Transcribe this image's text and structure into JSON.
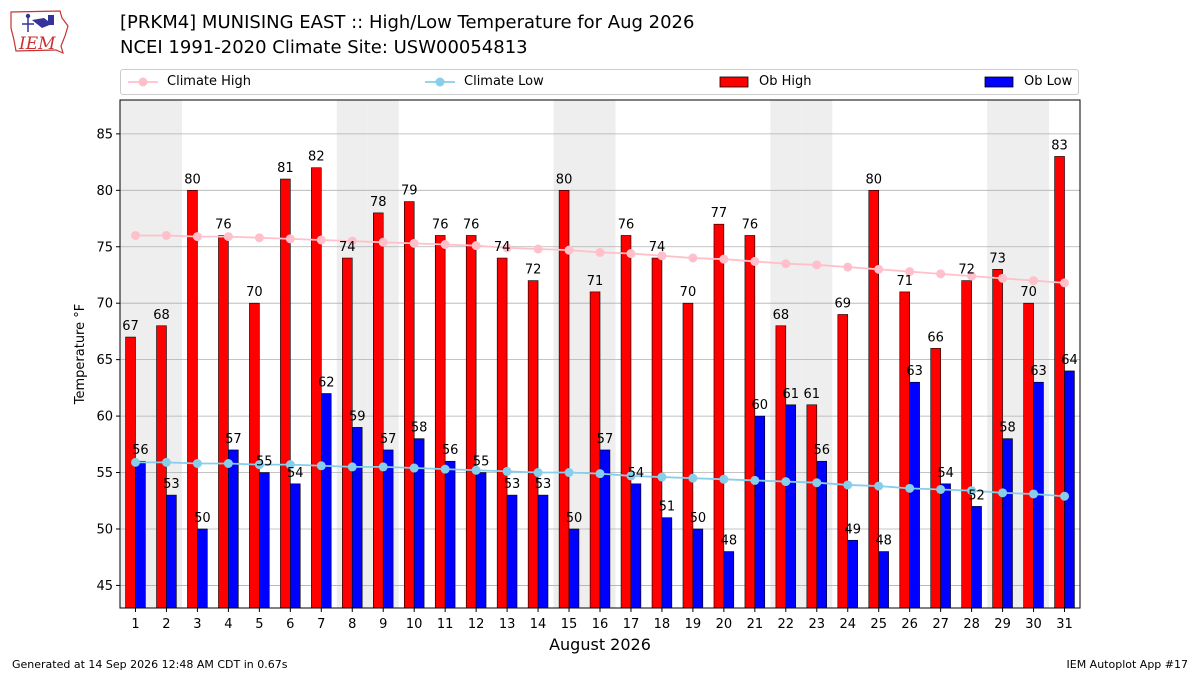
{
  "title": {
    "line1": "[PRKM4] MUNISING EAST :: High/Low Temperature for Aug 2026",
    "line2": "NCEI 1991-2020 Climate Site: USW00054813"
  },
  "logo_text": "IEM",
  "footer": {
    "left": "Generated at 14 Sep 2026 12:48 AM CDT in 0.67s",
    "right": "IEM Autoplot App #17"
  },
  "colors": {
    "ob_high": "#ff0000",
    "ob_low": "#0000ff",
    "climate_high": "#ffc0cb",
    "climate_low": "#87ceeb",
    "weekend_band": "#eeeeee",
    "grid": "#b0b0b0"
  },
  "chart_data": {
    "type": "bar",
    "xlabel": "August 2026",
    "ylabel": "Temperature °F",
    "ylim": [
      43,
      88
    ],
    "yticks": [
      45,
      50,
      55,
      60,
      65,
      70,
      75,
      80,
      85
    ],
    "grid": true,
    "legend_position": "top",
    "categories": [
      "1",
      "2",
      "3",
      "4",
      "5",
      "6",
      "7",
      "8",
      "9",
      "10",
      "11",
      "12",
      "13",
      "14",
      "15",
      "16",
      "17",
      "18",
      "19",
      "20",
      "21",
      "22",
      "23",
      "24",
      "25",
      "26",
      "27",
      "28",
      "29",
      "30",
      "31"
    ],
    "shaded_days": [
      1,
      2,
      8,
      9,
      15,
      16,
      22,
      23,
      29,
      30
    ],
    "series": [
      {
        "name": "Ob High",
        "kind": "bar",
        "values": [
          67,
          68,
          80,
          76,
          70,
          81,
          82,
          74,
          78,
          79,
          76,
          76,
          74,
          72,
          80,
          71,
          76,
          74,
          70,
          77,
          76,
          68,
          61,
          69,
          80,
          71,
          66,
          72,
          73,
          70,
          83
        ]
      },
      {
        "name": "Ob Low",
        "kind": "bar",
        "values": [
          56,
          53,
          50,
          57,
          55,
          54,
          62,
          59,
          57,
          58,
          56,
          55,
          53,
          53,
          50,
          57,
          54,
          51,
          50,
          48,
          60,
          61,
          56,
          49,
          48,
          63,
          54,
          52,
          58,
          63,
          64
        ]
      },
      {
        "name": "Climate High",
        "kind": "line",
        "values": [
          76.0,
          76.0,
          75.9,
          75.9,
          75.8,
          75.7,
          75.6,
          75.5,
          75.4,
          75.3,
          75.2,
          75.1,
          74.9,
          74.8,
          74.7,
          74.5,
          74.4,
          74.2,
          74.0,
          73.9,
          73.7,
          73.5,
          73.4,
          73.2,
          73.0,
          72.8,
          72.6,
          72.4,
          72.2,
          72.0,
          71.8
        ]
      },
      {
        "name": "Climate Low",
        "kind": "line",
        "values": [
          55.9,
          55.9,
          55.8,
          55.8,
          55.7,
          55.7,
          55.6,
          55.5,
          55.5,
          55.4,
          55.3,
          55.2,
          55.1,
          55.0,
          55.0,
          54.9,
          54.7,
          54.6,
          54.5,
          54.4,
          54.3,
          54.2,
          54.1,
          53.9,
          53.8,
          53.6,
          53.5,
          53.4,
          53.2,
          53.1,
          52.9
        ]
      }
    ]
  }
}
